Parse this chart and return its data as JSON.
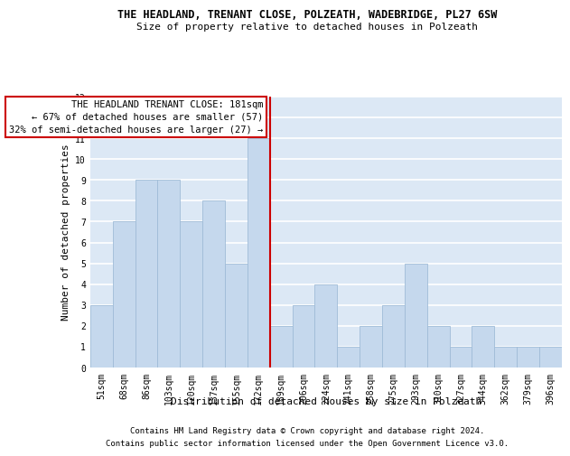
{
  "title": "THE HEADLAND, TRENANT CLOSE, POLZEATH, WADEBRIDGE, PL27 6SW",
  "subtitle": "Size of property relative to detached houses in Polzeath",
  "xlabel": "Distribution of detached houses by size in Polzeath",
  "ylabel": "Number of detached properties",
  "categories": [
    "51sqm",
    "68sqm",
    "86sqm",
    "103sqm",
    "120sqm",
    "137sqm",
    "155sqm",
    "172sqm",
    "189sqm",
    "206sqm",
    "224sqm",
    "241sqm",
    "258sqm",
    "275sqm",
    "293sqm",
    "310sqm",
    "327sqm",
    "344sqm",
    "362sqm",
    "379sqm",
    "396sqm"
  ],
  "values": [
    3,
    7,
    9,
    9,
    7,
    8,
    5,
    11,
    2,
    3,
    4,
    1,
    2,
    3,
    5,
    2,
    1,
    2,
    1,
    1,
    1
  ],
  "bar_color": "#c5d8ed",
  "bar_edge_color": "#a0bcd8",
  "vline_x_index": 7,
  "vline_color": "#cc0000",
  "annotation_text": "THE HEADLAND TRENANT CLOSE: 181sqm\n← 67% of detached houses are smaller (57)\n32% of semi-detached houses are larger (27) →",
  "annotation_box_color": "#ffffff",
  "annotation_box_edge_color": "#cc0000",
  "ylim": [
    0,
    13
  ],
  "yticks": [
    0,
    1,
    2,
    3,
    4,
    5,
    6,
    7,
    8,
    9,
    10,
    11,
    12,
    13
  ],
  "footer1": "Contains HM Land Registry data © Crown copyright and database right 2024.",
  "footer2": "Contains public sector information licensed under the Open Government Licence v3.0.",
  "background_color": "#dce8f5",
  "grid_color": "#ffffff",
  "title_fontsize": 8.5,
  "subtitle_fontsize": 8,
  "xlabel_fontsize": 8,
  "ylabel_fontsize": 8,
  "tick_fontsize": 7,
  "annotation_fontsize": 7.5,
  "footer_fontsize": 6.5
}
